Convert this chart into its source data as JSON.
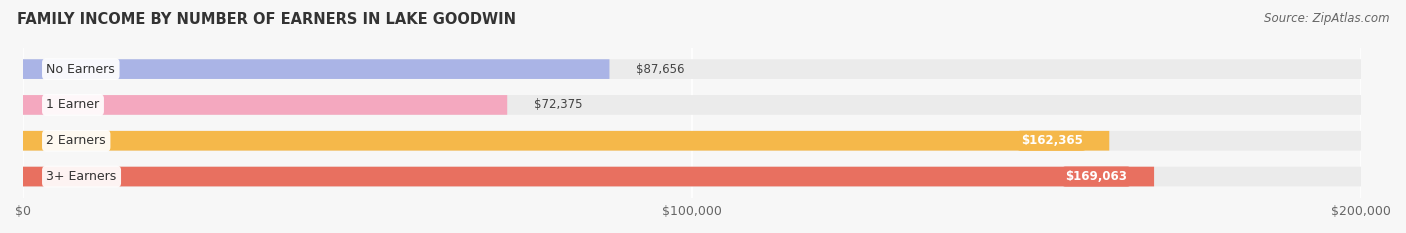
{
  "title": "FAMILY INCOME BY NUMBER OF EARNERS IN LAKE GOODWIN",
  "source": "Source: ZipAtlas.com",
  "categories": [
    "No Earners",
    "1 Earner",
    "2 Earners",
    "3+ Earners"
  ],
  "values": [
    87656,
    72375,
    162365,
    169063
  ],
  "value_labels": [
    "$87,656",
    "$72,375",
    "$162,365",
    "$169,063"
  ],
  "bar_colors": [
    "#aab4e6",
    "#f4a8bf",
    "#f5b84a",
    "#e87060"
  ],
  "bar_bg_color": "#ebebeb",
  "xlim": [
    0,
    200000
  ],
  "xticks": [
    0,
    100000,
    200000
  ],
  "xtick_labels": [
    "$0",
    "$100,000",
    "$200,000"
  ],
  "title_fontsize": 10.5,
  "source_fontsize": 8.5,
  "label_fontsize": 9,
  "value_fontsize": 8.5,
  "background_color": "#f7f7f7",
  "bar_height": 0.55,
  "value_inside_threshold": 100000
}
